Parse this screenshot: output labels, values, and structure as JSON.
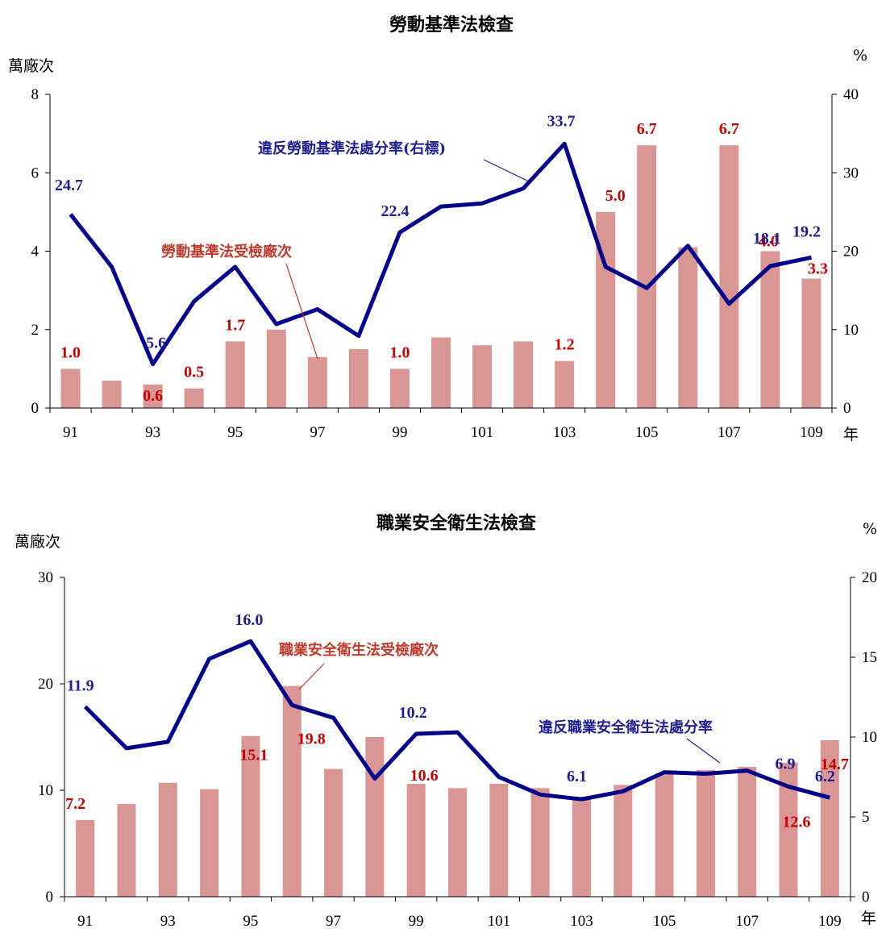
{
  "chart_data": [
    {
      "type": "bar",
      "title": "勞動基準法檢查",
      "left_unit": "萬廠次",
      "right_unit": "%",
      "x_unit": "年",
      "categories": [
        "91",
        "92",
        "93",
        "94",
        "95",
        "96",
        "97",
        "98",
        "99",
        "100",
        "101",
        "102",
        "103",
        "104",
        "105",
        "106",
        "107",
        "108",
        "109"
      ],
      "x_tick_labels": [
        "91",
        "93",
        "95",
        "97",
        "99",
        "101",
        "103",
        "105",
        "107",
        "109"
      ],
      "left_ticks": [
        "0",
        "2",
        "4",
        "6",
        "8"
      ],
      "right_ticks": [
        "0",
        "10",
        "20",
        "30",
        "40"
      ],
      "ylim_left": [
        0,
        8
      ],
      "ylim_right": [
        0,
        40
      ],
      "series": [
        {
          "name": "勞動基準法受檢廠次",
          "type": "bar",
          "axis": "left",
          "color": "#d99694",
          "values": [
            1.0,
            0.7,
            0.6,
            0.5,
            1.7,
            2.0,
            1.3,
            1.5,
            1.0,
            1.8,
            1.6,
            1.7,
            1.2,
            5.0,
            6.7,
            4.1,
            6.7,
            4.0,
            3.3
          ]
        },
        {
          "name": "違反勞動基準法處分率(右標)",
          "type": "line",
          "axis": "right",
          "color": "#00008b",
          "values": [
            24.7,
            18.0,
            5.6,
            13.6,
            18.0,
            10.7,
            12.6,
            9.2,
            22.4,
            25.7,
            26.1,
            28.0,
            33.7,
            18.0,
            15.3,
            20.7,
            13.3,
            18.1,
            19.2
          ]
        }
      ],
      "bar_labels": [
        {
          "index": 0,
          "text": "1.0"
        },
        {
          "index": 2,
          "text": "0.6"
        },
        {
          "index": 3,
          "text": "0.5"
        },
        {
          "index": 4,
          "text": "1.7"
        },
        {
          "index": 8,
          "text": "1.0"
        },
        {
          "index": 12,
          "text": "1.2"
        },
        {
          "index": 13,
          "text": "5.0"
        },
        {
          "index": 14,
          "text": "6.7"
        },
        {
          "index": 16,
          "text": "6.7"
        },
        {
          "index": 17,
          "text": "4.0"
        },
        {
          "index": 18,
          "text": "3.3"
        }
      ],
      "line_labels": [
        {
          "index": 0,
          "text": "24.7"
        },
        {
          "index": 2,
          "text": "5.6"
        },
        {
          "index": 8,
          "text": "22.4"
        },
        {
          "index": 12,
          "text": "33.7"
        },
        {
          "index": 17,
          "text": "18.1"
        },
        {
          "index": 18,
          "text": "19.2"
        }
      ]
    },
    {
      "type": "bar",
      "title": "職業安全衛生法檢查",
      "left_unit": "萬廠次",
      "right_unit": "%",
      "x_unit": "年",
      "categories": [
        "91",
        "92",
        "93",
        "94",
        "95",
        "96",
        "97",
        "98",
        "99",
        "100",
        "101",
        "102",
        "103",
        "104",
        "105",
        "106",
        "107",
        "108",
        "109"
      ],
      "x_tick_labels": [
        "91",
        "93",
        "95",
        "97",
        "99",
        "101",
        "103",
        "105",
        "107",
        "109"
      ],
      "left_ticks": [
        "0",
        "10",
        "20",
        "30"
      ],
      "right_ticks": [
        "0",
        "5",
        "10",
        "15",
        "20"
      ],
      "ylim_left": [
        0,
        30
      ],
      "ylim_right": [
        0,
        20
      ],
      "series": [
        {
          "name": "職業安全衛生法受檢廠次",
          "type": "bar",
          "axis": "left",
          "color": "#d99694",
          "values": [
            7.2,
            8.7,
            10.7,
            10.1,
            15.1,
            19.8,
            12.0,
            15.0,
            10.6,
            10.2,
            10.6,
            10.2,
            9.4,
            10.5,
            11.6,
            11.9,
            12.2,
            12.6,
            14.7
          ]
        },
        {
          "name": "違反職業安全衛生法處分率",
          "type": "line",
          "axis": "right",
          "color": "#00008b",
          "values": [
            11.9,
            9.3,
            9.7,
            14.9,
            16.0,
            12.0,
            11.2,
            7.4,
            10.2,
            10.3,
            7.5,
            6.4,
            6.1,
            6.6,
            7.8,
            7.7,
            7.9,
            6.9,
            6.2
          ]
        }
      ],
      "bar_labels": [
        {
          "index": 0,
          "text": "7.2"
        },
        {
          "index": 4,
          "text": "15.1"
        },
        {
          "index": 5,
          "text": "19.8"
        },
        {
          "index": 8,
          "text": "10.6"
        },
        {
          "index": 17,
          "text": "12.6"
        },
        {
          "index": 18,
          "text": "14.7"
        }
      ],
      "line_labels": [
        {
          "index": 0,
          "text": "11.9"
        },
        {
          "index": 4,
          "text": "16.0"
        },
        {
          "index": 8,
          "text": "10.2"
        },
        {
          "index": 12,
          "text": "6.1"
        },
        {
          "index": 17,
          "text": "6.9"
        },
        {
          "index": 18,
          "text": "6.2"
        }
      ]
    }
  ]
}
